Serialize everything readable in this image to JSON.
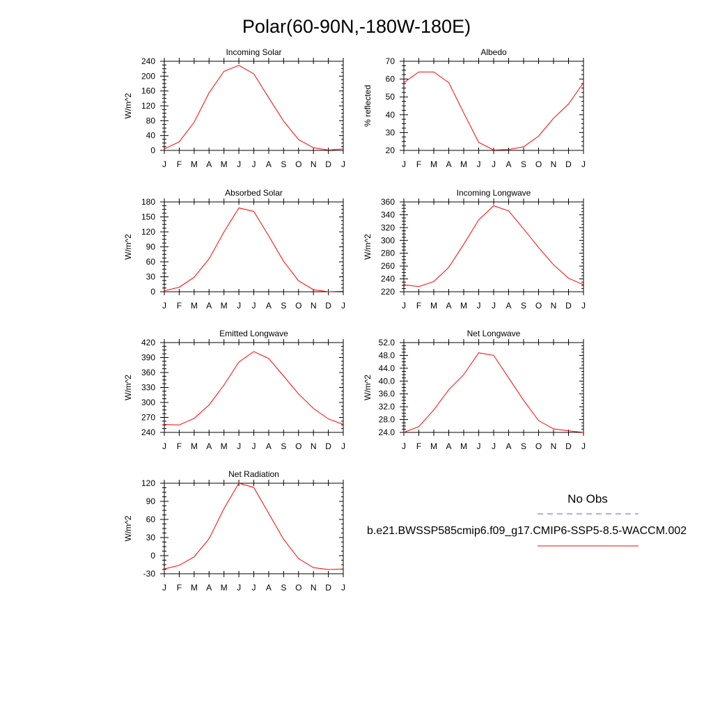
{
  "figure": {
    "title": "Polar(60-90N,-180W-180E)"
  },
  "colors": {
    "series": "#ff0000",
    "obs": "#5a5aff",
    "axis": "#000000"
  },
  "months": [
    "J",
    "F",
    "M",
    "A",
    "M",
    "J",
    "J",
    "A",
    "S",
    "O",
    "N",
    "D",
    "J"
  ],
  "legend": {
    "title": "No Obs",
    "model_label": "b.e21.BWSSP585cmip6.f09_g17.CMIP6-SSP5-8.5-WACCM.002",
    "obs_line_style": "dashed",
    "model_line_style": "solid"
  },
  "chart_data": [
    {
      "type": "line",
      "title": "Incoming Solar",
      "ylabel": "W/m^2",
      "categories": [
        "J",
        "F",
        "M",
        "A",
        "M",
        "J",
        "J",
        "A",
        "S",
        "O",
        "N",
        "D",
        "J"
      ],
      "ylim": [
        0,
        240
      ],
      "yticks": [
        0,
        40,
        80,
        120,
        160,
        200,
        240
      ],
      "ytick_labels": [
        "0",
        "40",
        "80",
        "120",
        "160",
        "200",
        "240"
      ],
      "series": [
        {
          "values": [
            4,
            23,
            76,
            155,
            213,
            229,
            206,
            142,
            79,
            29,
            7,
            1,
            4
          ]
        }
      ]
    },
    {
      "type": "line",
      "title": "Albedo",
      "ylabel": "% reflected",
      "categories": [
        "J",
        "F",
        "M",
        "A",
        "M",
        "J",
        "J",
        "A",
        "S",
        "O",
        "N",
        "D",
        "J"
      ],
      "ylim": [
        20,
        70
      ],
      "yticks": [
        20,
        30,
        40,
        50,
        60,
        70
      ],
      "ytick_labels": [
        "20",
        "30",
        "40",
        "50",
        "60",
        "70"
      ],
      "series": [
        {
          "values": [
            58,
            64,
            64,
            58,
            41,
            24.5,
            20.2,
            20.5,
            22,
            28,
            38,
            46,
            58
          ]
        }
      ]
    },
    {
      "type": "line",
      "title": "Absorbed Solar",
      "ylabel": "W/m^2",
      "categories": [
        "J",
        "F",
        "M",
        "A",
        "M",
        "J",
        "J",
        "A",
        "S",
        "O",
        "N",
        "D",
        "J"
      ],
      "ylim": [
        0,
        180
      ],
      "yticks": [
        0,
        30,
        60,
        90,
        120,
        150,
        180
      ],
      "ytick_labels": [
        "0",
        "30",
        "60",
        "90",
        "120",
        "150",
        "180"
      ],
      "series": [
        {
          "values": [
            2,
            9,
            29,
            66,
            120,
            168,
            161,
            112,
            61,
            22,
            4,
            0,
            1
          ]
        }
      ]
    },
    {
      "type": "line",
      "title": "Incoming Longwave",
      "ylabel": "W/m^2",
      "categories": [
        "J",
        "F",
        "M",
        "A",
        "M",
        "J",
        "J",
        "A",
        "S",
        "O",
        "N",
        "D",
        "J"
      ],
      "ylim": [
        220,
        360
      ],
      "yticks": [
        220,
        240,
        260,
        280,
        300,
        320,
        340,
        360
      ],
      "ytick_labels": [
        "220",
        "240",
        "260",
        "280",
        "300",
        "320",
        "340",
        "360"
      ],
      "series": [
        {
          "values": [
            231,
            228,
            236,
            258,
            294,
            332,
            354,
            346,
            318,
            289,
            262,
            241,
            231
          ]
        }
      ]
    },
    {
      "type": "line",
      "title": "Emitted Longwave",
      "ylabel": "W/m^2",
      "categories": [
        "J",
        "F",
        "M",
        "A",
        "M",
        "J",
        "J",
        "A",
        "S",
        "O",
        "N",
        "D",
        "J"
      ],
      "ylim": [
        240,
        420
      ],
      "yticks": [
        240,
        270,
        300,
        330,
        360,
        390,
        420
      ],
      "ytick_labels": [
        "240",
        "270",
        "300",
        "330",
        "360",
        "390",
        "420"
      ],
      "series": [
        {
          "values": [
            256,
            255,
            268,
            295,
            335,
            381,
            402,
            388,
            353,
            317,
            288,
            267,
            256
          ]
        }
      ]
    },
    {
      "type": "line",
      "title": "Net Longwave",
      "ylabel": "W/m^2",
      "categories": [
        "J",
        "F",
        "M",
        "A",
        "M",
        "J",
        "J",
        "A",
        "S",
        "O",
        "N",
        "D",
        "J"
      ],
      "ylim": [
        24,
        52
      ],
      "yticks": [
        24,
        28,
        32,
        36,
        40,
        44,
        48,
        52
      ],
      "ytick_labels": [
        "24.0",
        "28.0",
        "32.0",
        "36.0",
        "40.0",
        "44.0",
        "48.0",
        "52.0"
      ],
      "series": [
        {
          "values": [
            24.0,
            25.8,
            31.0,
            37.3,
            42.0,
            48.8,
            48.0,
            41.0,
            34.0,
            27.7,
            25.1,
            24.5,
            24.0
          ]
        }
      ]
    },
    {
      "type": "line",
      "title": "Net Radiation",
      "ylabel": "W/m^2",
      "categories": [
        "J",
        "F",
        "M",
        "A",
        "M",
        "J",
        "J",
        "A",
        "S",
        "O",
        "N",
        "D",
        "J"
      ],
      "ylim": [
        -30,
        120
      ],
      "yticks": [
        -30,
        0,
        30,
        60,
        90,
        120
      ],
      "ytick_labels": [
        "-30",
        "0",
        "30",
        "60",
        "90",
        "120"
      ],
      "series": [
        {
          "values": [
            -22,
            -16,
            -2,
            28,
            78,
            120,
            113,
            70,
            27,
            -5,
            -20,
            -23,
            -22
          ]
        }
      ]
    }
  ]
}
